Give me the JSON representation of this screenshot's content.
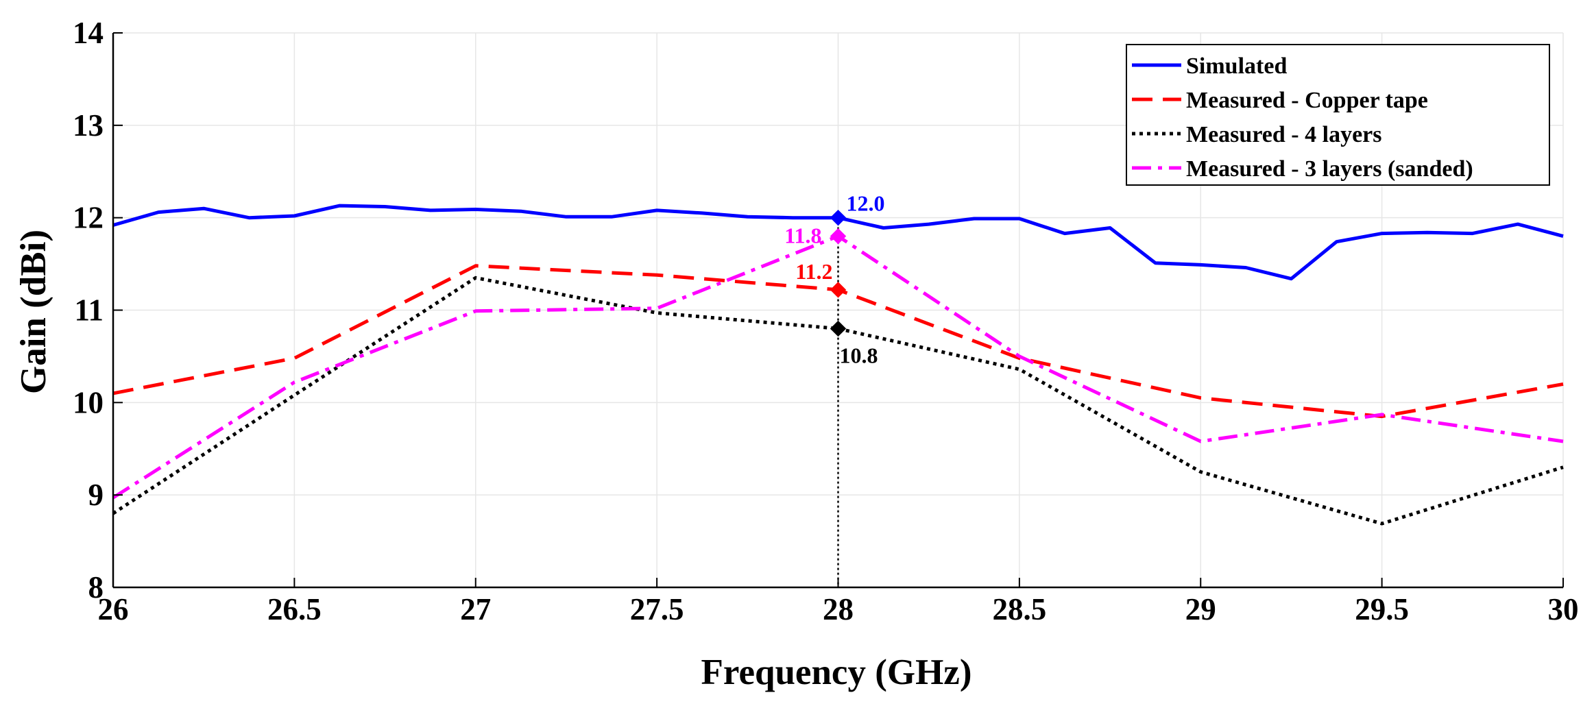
{
  "chart_data": {
    "type": "line",
    "title": "",
    "xlabel": "Frequency (GHz)",
    "ylabel": "Gain (dBi)",
    "xlim": [
      26,
      30
    ],
    "ylim": [
      8,
      14
    ],
    "grid": true,
    "legend_position": "top-right",
    "xticks": [
      "26",
      "26.5",
      "27",
      "27.5",
      "28",
      "28.5",
      "29",
      "29.5",
      "30"
    ],
    "yticks": [
      "8",
      "9",
      "10",
      "11",
      "12",
      "13",
      "14"
    ],
    "series": [
      {
        "name": "Simulated",
        "color": "#0000ff",
        "style": "solid",
        "x": [
          26,
          26.125,
          26.25,
          26.375,
          26.5,
          26.625,
          26.75,
          26.875,
          27,
          27.125,
          27.25,
          27.375,
          27.5,
          27.625,
          27.75,
          27.875,
          28,
          28.125,
          28.25,
          28.375,
          28.5,
          28.625,
          28.75,
          28.875,
          29,
          29.125,
          29.25,
          29.375,
          29.5,
          29.625,
          29.75,
          29.875,
          30
        ],
        "y": [
          11.92,
          12.06,
          12.1,
          12.0,
          12.02,
          12.13,
          12.12,
          12.08,
          12.09,
          12.07,
          12.01,
          12.01,
          12.08,
          12.05,
          12.01,
          12.0,
          12.0,
          11.89,
          11.93,
          11.99,
          11.99,
          11.83,
          11.89,
          11.51,
          11.49,
          11.46,
          11.34,
          11.74,
          11.83,
          11.84,
          11.83,
          11.93,
          11.8
        ]
      },
      {
        "name": "Measured - Copper tape",
        "color": "#ff0000",
        "style": "dashed",
        "x": [
          26,
          26.5,
          27,
          27.5,
          28,
          28.5,
          29,
          29.5,
          30
        ],
        "y": [
          10.1,
          10.48,
          11.48,
          11.38,
          11.22,
          10.48,
          10.05,
          9.85,
          10.2
        ]
      },
      {
        "name": "Measured - 4 layers",
        "color": "#000000",
        "style": "dotted",
        "x": [
          26,
          26.5,
          27,
          27.5,
          28,
          28.5,
          29,
          29.5,
          30
        ],
        "y": [
          8.8,
          10.08,
          11.35,
          10.97,
          10.8,
          10.36,
          9.25,
          8.69,
          9.3
        ]
      },
      {
        "name": "Measured - 3 layers (sanded)",
        "color": "#ff00ff",
        "style": "dashdot",
        "x": [
          26,
          26.5,
          27,
          27.5,
          28,
          28.5,
          29,
          29.5,
          30
        ],
        "y": [
          8.97,
          10.22,
          10.99,
          11.02,
          11.8,
          10.5,
          9.58,
          9.87,
          9.58
        ]
      }
    ],
    "annotations": [
      {
        "series": "Simulated",
        "x": 28,
        "y": 12.0,
        "label": "12.0",
        "color": "#0000ff"
      },
      {
        "series": "Measured - 3 layers (sanded)",
        "x": 28,
        "y": 11.8,
        "label": "11.8",
        "color": "#ff00ff"
      },
      {
        "series": "Measured - Copper tape",
        "x": 28,
        "y": 11.22,
        "label": "11.2",
        "color": "#ff0000"
      },
      {
        "series": "Measured - 4 layers",
        "x": 28,
        "y": 10.8,
        "label": "10.8",
        "color": "#000000"
      }
    ],
    "marker_line_x": 28
  }
}
